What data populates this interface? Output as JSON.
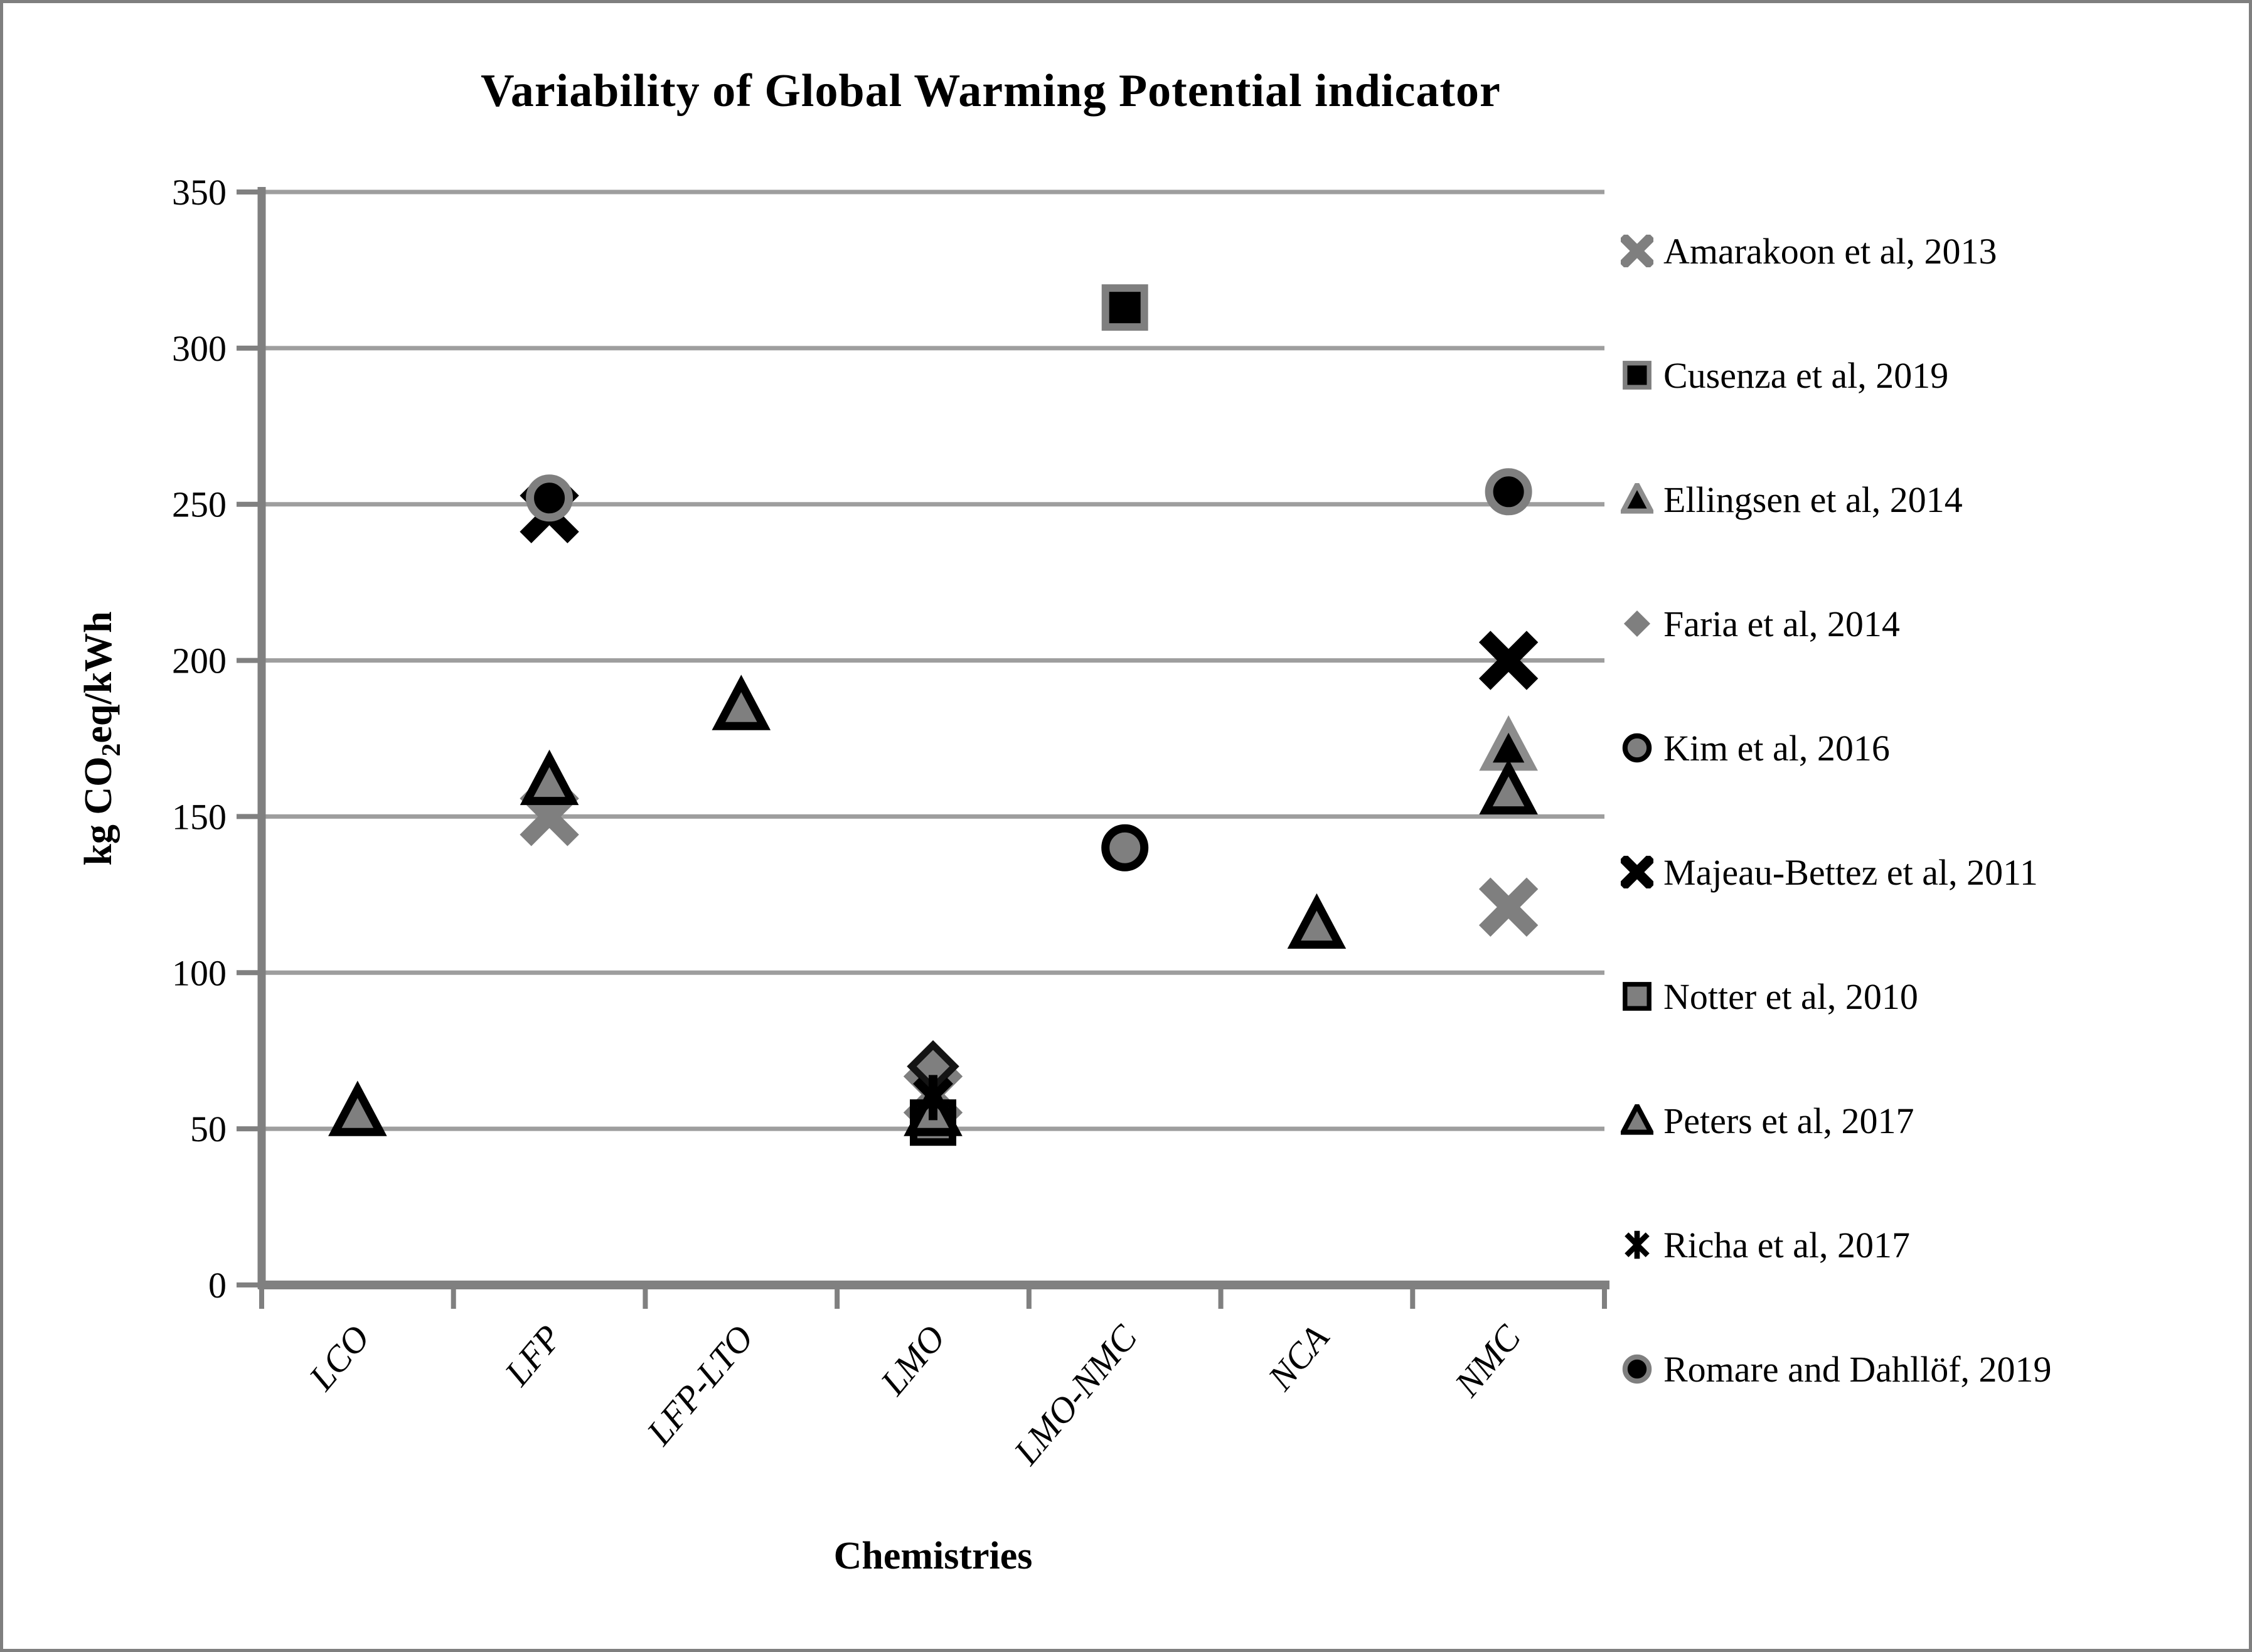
{
  "chart_data": {
    "type": "scatter",
    "title": "Variability of Global Warming Potential indicator",
    "xlabel": "Chemistries",
    "ylabel": "kg CO2eq/kWh",
    "ylabel_parts": {
      "pre": "kg CO",
      "sub": "2",
      "post": "eq/kWh"
    },
    "ylim": [
      0,
      350
    ],
    "ytick_step": 50,
    "ytick_labels": [
      "0",
      "50",
      "100",
      "150",
      "200",
      "250",
      "300",
      "350"
    ],
    "grid": "horizontal-gridlines",
    "legend_position": "right",
    "categories": [
      "LCO",
      "LFP",
      "LFP-LTO",
      "LMO",
      "LMO-NMC",
      "NCA",
      "NMC"
    ],
    "units": "kg CO2eq/kWh",
    "series": [
      {
        "name": "Amarakoon et al, 2013",
        "marker": "x-thick",
        "fill": "#7f7f7f",
        "stroke": "none",
        "points": [
          {
            "x": "LFP",
            "y": 150
          },
          {
            "x": "LMO",
            "y": 61
          },
          {
            "x": "NMC",
            "y": 121
          }
        ]
      },
      {
        "name": "Cusenza et al, 2019",
        "marker": "square",
        "fill": "#000000",
        "stroke": "#7f7f7f",
        "points": [
          {
            "x": "LMO-NMC",
            "y": 313
          }
        ]
      },
      {
        "name": "Ellingsen et al, 2014",
        "marker": "triangle",
        "fill": "#000000",
        "stroke": "#8c8c8c",
        "points": [
          {
            "x": "NMC",
            "y": 172
          }
        ]
      },
      {
        "name": "Faria et al, 2014",
        "marker": "diamond",
        "fill": "#7f7f7f",
        "stroke": "#141414",
        "legend_stroke": "none",
        "points": [
          {
            "x": "LMO",
            "y": 70
          }
        ]
      },
      {
        "name": "Kim et al, 2016",
        "marker": "circle",
        "fill": "#7f7f7f",
        "stroke": "#000000",
        "points": [
          {
            "x": "LMO-NMC",
            "y": 140
          }
        ]
      },
      {
        "name": "Majeau-Bettez et al, 2011",
        "marker": "x-thick",
        "fill": "#000000",
        "stroke": "none",
        "points": [
          {
            "x": "LFP",
            "y": 247
          },
          {
            "x": "NMC",
            "y": 200
          }
        ]
      },
      {
        "name": "Notter et al, 2010",
        "marker": "square",
        "fill": "#7f7f7f",
        "stroke": "#000000",
        "points": [
          {
            "x": "LMO",
            "y": 52
          }
        ]
      },
      {
        "name": "Peters et al, 2017",
        "marker": "triangle",
        "fill": "#7f7f7f",
        "stroke": "#000000",
        "points": [
          {
            "x": "LCO",
            "y": 55
          },
          {
            "x": "LFP",
            "y": 161
          },
          {
            "x": "LFP-LTO",
            "y": 185
          },
          {
            "x": "LMO",
            "y": 55
          },
          {
            "x": "NCA",
            "y": 115
          },
          {
            "x": "NMC",
            "y": 158
          }
        ]
      },
      {
        "name": "Richa et al, 2017",
        "marker": "asterisk",
        "fill": "#000000",
        "stroke": "none",
        "points": [
          {
            "x": "LMO",
            "y": 60
          }
        ]
      },
      {
        "name": "Romare and Dahllöf, 2019",
        "marker": "circle",
        "fill": "#000000",
        "stroke": "#7f7f7f",
        "points": [
          {
            "x": "LFP",
            "y": 252
          },
          {
            "x": "NMC",
            "y": 254
          }
        ]
      }
    ]
  },
  "colors": {
    "gridline": "#9e9e9e",
    "axis": "#808080",
    "marker_gray": "#7f7f7f",
    "marker_black": "#000000",
    "text": "#000000",
    "frame_border": "#7f7f7f"
  }
}
